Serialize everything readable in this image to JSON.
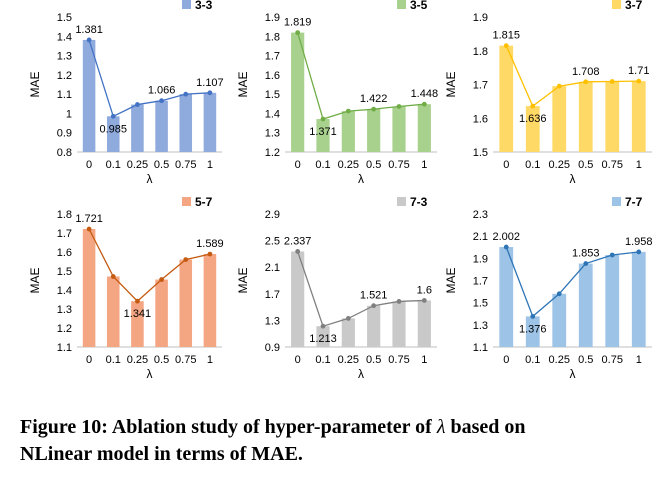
{
  "caption": {
    "line1_pre": "Figure 10: Ablation study of hyper-parameter of",
    "symbol": "λ",
    "line1_post": "based on",
    "line2": "NLinear model in terms of MAE."
  },
  "chart_data": [
    {
      "type": "bar",
      "legend": "3-3",
      "color": "#8faadc",
      "line_color": "#4472c4",
      "ylabel": "MAE",
      "xlabel": "λ",
      "ylim": [
        0.8,
        1.5
      ],
      "yticks": [
        "0.8",
        "0.9",
        "1",
        "1.1",
        "1.2",
        "1.3",
        "1.4",
        "1.5"
      ],
      "categories": [
        "0",
        "0.1",
        "0.25",
        "0.5",
        "0.75",
        "1"
      ],
      "values": [
        1.381,
        0.985,
        1.046,
        1.066,
        1.1,
        1.107
      ],
      "data_labels": [
        "1.381",
        "0.985",
        "",
        "1.066",
        "",
        "1.107"
      ]
    },
    {
      "type": "bar",
      "legend": "3-5",
      "color": "#a9d18e",
      "line_color": "#70ad47",
      "ylabel": "MAE",
      "xlabel": "λ",
      "ylim": [
        1.2,
        1.9
      ],
      "yticks": [
        "1.2",
        "1.3",
        "1.4",
        "1.5",
        "1.6",
        "1.7",
        "1.8",
        "1.9"
      ],
      "categories": [
        "0",
        "0.1",
        "0.25",
        "0.5",
        "0.75",
        "1"
      ],
      "values": [
        1.819,
        1.371,
        1.412,
        1.422,
        1.436,
        1.448
      ],
      "data_labels": [
        "1.819",
        "1.371",
        "",
        "1.422",
        "",
        "1.448"
      ]
    },
    {
      "type": "bar",
      "legend": "3-7",
      "color": "#ffd966",
      "line_color": "#ffc000",
      "ylabel": "MAE",
      "xlabel": "λ",
      "ylim": [
        1.5,
        1.9
      ],
      "yticks": [
        "1.5",
        "1.6",
        "1.7",
        "1.8",
        "1.9"
      ],
      "categories": [
        "0",
        "0.1",
        "0.25",
        "0.5",
        "0.75",
        "1"
      ],
      "values": [
        1.815,
        1.636,
        1.695,
        1.708,
        1.709,
        1.71
      ],
      "data_labels": [
        "1.815",
        "1.636",
        "",
        "1.708",
        "",
        "1.71"
      ]
    },
    {
      "type": "bar",
      "legend": "5-7",
      "color": "#f4a582",
      "line_color": "#c55a11",
      "ylabel": "MAE",
      "xlabel": "λ",
      "ylim": [
        1.1,
        1.8
      ],
      "yticks": [
        "1.1",
        "1.2",
        "1.3",
        "1.4",
        "1.5",
        "1.6",
        "1.7",
        "1.8"
      ],
      "categories": [
        "0",
        "0.1",
        "0.25",
        "0.5",
        "0.75",
        "1"
      ],
      "values": [
        1.721,
        1.471,
        1.341,
        1.455,
        1.56,
        1.589
      ],
      "data_labels": [
        "1.721",
        "",
        "1.341",
        "",
        "",
        "1.589"
      ]
    },
    {
      "type": "bar",
      "legend": "7-3",
      "color": "#c9c9c9",
      "line_color": "#808080",
      "ylabel": "MAE",
      "xlabel": "λ",
      "ylim": [
        0.9,
        2.9
      ],
      "yticks": [
        "0.9",
        "1.3",
        "1.7",
        "2.1",
        "2.5",
        "2.9"
      ],
      "categories": [
        "0",
        "0.1",
        "0.25",
        "0.5",
        "0.75",
        "1"
      ],
      "values": [
        2.337,
        1.213,
        1.33,
        1.521,
        1.585,
        1.6
      ],
      "data_labels": [
        "2.337",
        "1.213",
        "",
        "1.521",
        "",
        "1.6"
      ]
    },
    {
      "type": "bar",
      "legend": "7-7",
      "color": "#9dc3e6",
      "line_color": "#2e75b6",
      "ylabel": "MAE",
      "xlabel": "λ",
      "ylim": [
        1.1,
        2.3
      ],
      "yticks": [
        "1.1",
        "1.3",
        "1.5",
        "1.7",
        "1.9",
        "2.1",
        "2.3"
      ],
      "categories": [
        "0",
        "0.1",
        "0.25",
        "0.5",
        "0.75",
        "1"
      ],
      "values": [
        2.002,
        1.376,
        1.58,
        1.853,
        1.93,
        1.958
      ],
      "data_labels": [
        "2.002",
        "1.376",
        "",
        "1.853",
        "",
        "1.958"
      ]
    }
  ]
}
